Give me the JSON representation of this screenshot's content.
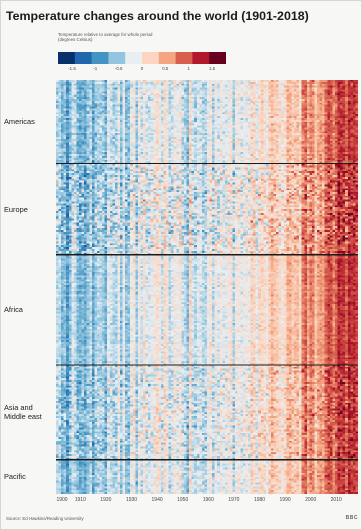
{
  "chart_data": {
    "type": "heatmap",
    "title": "Temperature changes around the world (1901-2018)",
    "legend": {
      "title_lines": [
        "Temperature relative to average for whole period",
        "(degrees Celsius)"
      ],
      "ticks": [
        "-1.5",
        "-1",
        "-0.5",
        "0",
        "0.5",
        "1",
        "1.5"
      ],
      "range": [
        -1.8,
        1.8
      ],
      "colors": [
        "#08306b",
        "#2166ac",
        "#4393c3",
        "#92c5de",
        "#e8eef2",
        "#fbd5c0",
        "#f4a582",
        "#d6604d",
        "#b2182b",
        "#67001f"
      ]
    },
    "x_range": [
      1901,
      2018
    ],
    "x_ticks": [
      "1900",
      "1910",
      "1920",
      "1930",
      "1940",
      "1950",
      "1960",
      "1970",
      "1980",
      "1990",
      "2000",
      "2010"
    ],
    "regions": [
      {
        "name": "Americas",
        "label_lines": [
          "Americas"
        ],
        "rows": 44,
        "variability": 0.45
      },
      {
        "name": "Europe",
        "label_lines": [
          "Europe"
        ],
        "rows": 48,
        "variability": 0.85
      },
      {
        "name": "Africa",
        "label_lines": [
          "Africa"
        ],
        "rows": 58,
        "variability": 0.35
      },
      {
        "name": "Asia and Middle east",
        "label_lines": [
          "Asia and",
          "Middle east"
        ],
        "rows": 50,
        "variability": 0.65
      },
      {
        "name": "Pacific",
        "label_lines": [
          "Pacific"
        ],
        "rows": 18,
        "variability": 0.45
      }
    ],
    "trend": {
      "years": [
        1901,
        1910,
        1920,
        1930,
        1940,
        1950,
        1960,
        1970,
        1980,
        1990,
        2000,
        2010,
        2018
      ],
      "anomaly": [
        -0.55,
        -0.7,
        -0.55,
        -0.35,
        -0.15,
        -0.2,
        -0.2,
        -0.15,
        0.05,
        0.35,
        0.75,
        1.05,
        1.35
      ]
    }
  },
  "footer": {
    "source": "Source: Ed Hawkins/Reading University",
    "brand": "BBC"
  }
}
